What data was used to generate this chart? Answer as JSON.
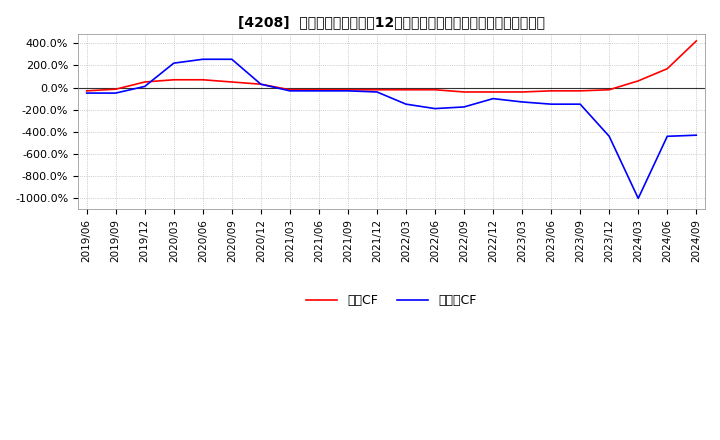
{
  "title": "[4208]  キャッシュフローの12か月移動合計の対前年同期増減率の推移",
  "legend_labels": [
    "営業CF",
    "フリーCF"
  ],
  "line_colors": [
    "#FF0000",
    "#0000FF"
  ],
  "ylim": [
    -1100,
    480
  ],
  "yticks": [
    400,
    200,
    0,
    -200,
    -400,
    -600,
    -800,
    -1000
  ],
  "ytick_labels": [
    "400.0%",
    "200.0%",
    "0.0%",
    "-200.0%",
    "-400.0%",
    "-600.0%",
    "-800.0%",
    "-1000.0%"
  ],
  "x_dates": [
    "2019/06",
    "2019/09",
    "2019/12",
    "2020/03",
    "2020/06",
    "2020/09",
    "2020/12",
    "2021/03",
    "2021/06",
    "2021/09",
    "2021/12",
    "2022/03",
    "2022/06",
    "2022/09",
    "2022/12",
    "2023/03",
    "2023/06",
    "2023/09",
    "2023/12",
    "2024/03",
    "2024/06",
    "2024/09"
  ],
  "operating_cf": [
    -30,
    -15,
    50,
    70,
    70,
    50,
    30,
    -20,
    -20,
    -20,
    -20,
    -20,
    -20,
    -40,
    -40,
    -40,
    -30,
    -30,
    -20,
    60,
    170,
    420
  ],
  "free_cf": [
    -50,
    -50,
    10,
    220,
    255,
    255,
    30,
    -30,
    -30,
    -30,
    -40,
    -150,
    -190,
    -175,
    -100,
    -130,
    -150,
    -150,
    -440,
    -1000,
    -440,
    -430
  ],
  "background_color": "#FFFFFF",
  "plot_bg_color": "#FFFFFF",
  "grid_color": "#AAAAAA",
  "linewidth": 1.2
}
